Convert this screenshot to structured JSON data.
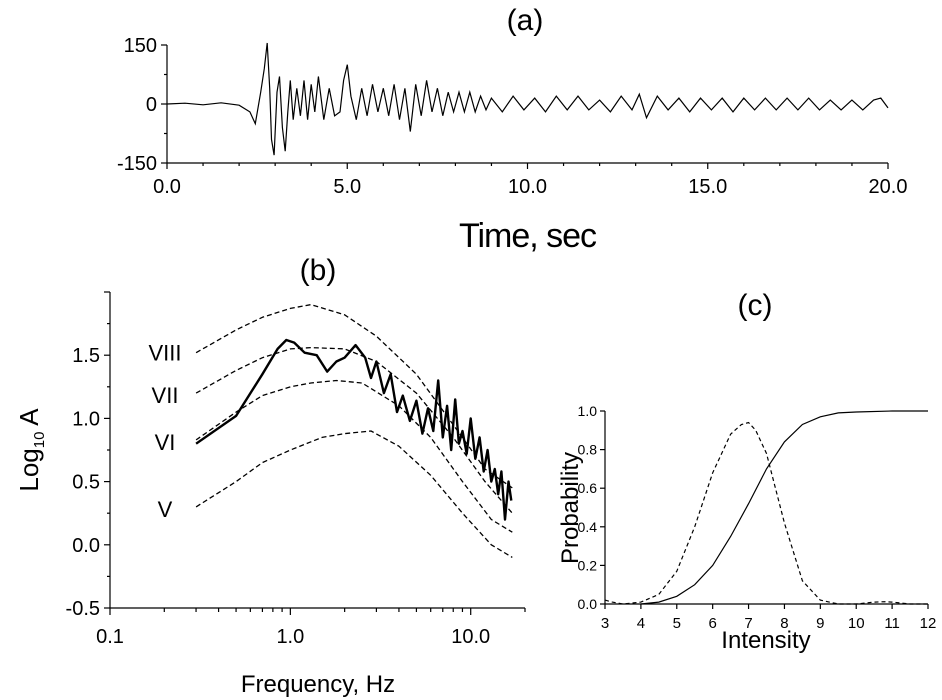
{
  "chart_data": [
    {
      "panel_label": "(a)",
      "type": "line",
      "xlabel": "Time, sec",
      "ylabel": "",
      "xlim": [
        0,
        20
      ],
      "ylim": [
        -150,
        150
      ],
      "xticks": [
        "0.0",
        "5.0",
        "10.0",
        "15.0",
        "20.0"
      ],
      "yticks": [
        "-150",
        "0",
        "150"
      ],
      "series": [
        {
          "style": "solid",
          "x": [
            0,
            0.5,
            1.0,
            1.5,
            2.0,
            2.3,
            2.45,
            2.6,
            2.7,
            2.78,
            2.85,
            2.9,
            2.97,
            3.05,
            3.12,
            3.2,
            3.28,
            3.35,
            3.42,
            3.5,
            3.6,
            3.7,
            3.8,
            3.9,
            4.0,
            4.1,
            4.2,
            4.35,
            4.5,
            4.65,
            4.8,
            4.9,
            5.0,
            5.1,
            5.25,
            5.4,
            5.55,
            5.7,
            5.85,
            6.0,
            6.15,
            6.3,
            6.45,
            6.6,
            6.75,
            6.9,
            7.05,
            7.2,
            7.35,
            7.5,
            7.65,
            7.8,
            7.95,
            8.1,
            8.25,
            8.4,
            8.55,
            8.7,
            8.85,
            9.0,
            9.3,
            9.6,
            9.9,
            10.2,
            10.5,
            10.8,
            11.1,
            11.4,
            11.7,
            12.0,
            12.3,
            12.6,
            12.9,
            13.1,
            13.3,
            13.6,
            13.9,
            14.2,
            14.5,
            14.8,
            15.1,
            15.4,
            15.7,
            16.0,
            16.3,
            16.6,
            16.9,
            17.2,
            17.5,
            17.8,
            18.1,
            18.4,
            18.7,
            19.0,
            19.3,
            19.6,
            19.8,
            20.0
          ],
          "y": [
            0,
            2,
            -2,
            3,
            -3,
            -20,
            -50,
            30,
            90,
            155,
            40,
            -90,
            -130,
            30,
            70,
            -60,
            -120,
            -20,
            60,
            -40,
            40,
            -30,
            60,
            -40,
            50,
            -20,
            70,
            -40,
            40,
            -30,
            -20,
            60,
            100,
            20,
            -40,
            40,
            -30,
            50,
            -20,
            40,
            -30,
            50,
            -40,
            40,
            -70,
            50,
            -30,
            60,
            -20,
            40,
            -30,
            30,
            -20,
            30,
            -20,
            30,
            -20,
            20,
            -15,
            15,
            -20,
            20,
            -15,
            15,
            -20,
            20,
            -15,
            20,
            -15,
            10,
            -20,
            20,
            -15,
            25,
            -35,
            20,
            -15,
            15,
            -20,
            15,
            -15,
            15,
            -20,
            15,
            -15,
            15,
            -15,
            15,
            -15,
            15,
            -15,
            10,
            -15,
            10,
            -15,
            10,
            15,
            -10
          ]
        }
      ]
    },
    {
      "panel_label": "(b)",
      "type": "line",
      "xlabel": "Frequency, Hz",
      "ylabel": "Log",
      "ylabel_sub": "10",
      "ylabel_tail": " A",
      "xscale": "log",
      "xlim": [
        0.1,
        20
      ],
      "ylim": [
        -0.5,
        2.0
      ],
      "xticks": [
        "0.1",
        "1.0",
        "10.0"
      ],
      "yticks": [
        "-0.5",
        "0.0",
        "0.5",
        "1.0",
        "1.5"
      ],
      "series": [
        {
          "name": "",
          "style": "solid-thick",
          "x": [
            0.3,
            0.5,
            0.7,
            0.85,
            0.95,
            1.05,
            1.2,
            1.4,
            1.6,
            1.8,
            2.0,
            2.3,
            2.6,
            2.8,
            3.0,
            3.3,
            3.6,
            3.9,
            4.2,
            4.6,
            5.0,
            5.4,
            5.8,
            6.2,
            6.6,
            7.0,
            7.4,
            7.8,
            8.2,
            8.6,
            9.0,
            9.5,
            10.0,
            10.6,
            11.2,
            11.8,
            12.4,
            13.0,
            13.6,
            14.2,
            14.8,
            15.5,
            16.2,
            16.8
          ],
          "y": [
            0.8,
            1.02,
            1.35,
            1.55,
            1.62,
            1.6,
            1.52,
            1.5,
            1.37,
            1.45,
            1.48,
            1.58,
            1.48,
            1.32,
            1.45,
            1.2,
            1.35,
            1.05,
            1.18,
            0.98,
            1.14,
            0.88,
            1.08,
            0.9,
            1.3,
            0.85,
            1.1,
            0.75,
            1.15,
            0.8,
            0.9,
            0.72,
            1.0,
            0.68,
            0.85,
            0.58,
            0.75,
            0.5,
            0.6,
            0.4,
            0.58,
            0.2,
            0.5,
            0.35
          ]
        },
        {
          "name": "VIII",
          "style": "dashed",
          "x": [
            0.3,
            0.5,
            0.7,
            1.0,
            1.3,
            2.0,
            3.0,
            5.0,
            8.0,
            12.0,
            17.0
          ],
          "y": [
            1.52,
            1.7,
            1.8,
            1.87,
            1.9,
            1.82,
            1.65,
            1.35,
            0.95,
            0.6,
            0.45
          ]
        },
        {
          "name": "VII",
          "style": "dashed",
          "x": [
            0.3,
            0.5,
            0.7,
            1.0,
            1.3,
            2.0,
            3.0,
            5.0,
            8.0,
            12.0,
            17.0
          ],
          "y": [
            1.2,
            1.38,
            1.48,
            1.55,
            1.56,
            1.55,
            1.45,
            1.2,
            0.85,
            0.5,
            0.25
          ]
        },
        {
          "name": "VI",
          "style": "dashed",
          "x": [
            0.3,
            0.5,
            0.7,
            1.0,
            1.3,
            1.8,
            2.5,
            4.0,
            6.0,
            9.0,
            13.0,
            17.0
          ],
          "y": [
            0.83,
            1.05,
            1.18,
            1.25,
            1.28,
            1.3,
            1.28,
            1.1,
            0.85,
            0.5,
            0.2,
            0.1
          ]
        },
        {
          "name": "V",
          "style": "dashed",
          "x": [
            0.3,
            0.5,
            0.7,
            1.0,
            1.5,
            2.0,
            2.8,
            4.0,
            6.0,
            9.0,
            13.0,
            17.0
          ],
          "y": [
            0.3,
            0.5,
            0.65,
            0.75,
            0.85,
            0.88,
            0.9,
            0.78,
            0.55,
            0.25,
            0.0,
            -0.1
          ]
        }
      ]
    },
    {
      "panel_label": "(c)",
      "type": "line",
      "xlabel": "Intensity",
      "ylabel": "Probability",
      "xlim": [
        3,
        12
      ],
      "ylim": [
        0,
        1
      ],
      "xticks": [
        "3",
        "4",
        "5",
        "6",
        "7",
        "8",
        "9",
        "10",
        "11",
        "12"
      ],
      "yticks": [
        "0.0",
        "0.2",
        "0.4",
        "0.6",
        "0.8",
        "1.0"
      ],
      "series": [
        {
          "style": "solid",
          "x": [
            4.0,
            4.5,
            5.0,
            5.5,
            6.0,
            6.5,
            7.0,
            7.5,
            8.0,
            8.5,
            9.0,
            9.5,
            10.0,
            11.0,
            12.0
          ],
          "y": [
            0.0,
            0.01,
            0.04,
            0.1,
            0.2,
            0.35,
            0.52,
            0.7,
            0.84,
            0.93,
            0.97,
            0.99,
            0.995,
            1.0,
            1.0
          ]
        },
        {
          "style": "dashed",
          "x": [
            3.0,
            3.2,
            3.5,
            4.0,
            4.5,
            5.0,
            5.5,
            6.0,
            6.5,
            6.8,
            7.0,
            7.2,
            7.5,
            8.0,
            8.5,
            9.0,
            9.5,
            10.0,
            10.5,
            10.8,
            11.0,
            11.5,
            12.0
          ],
          "y": [
            0.02,
            0.01,
            0.0,
            0.01,
            0.05,
            0.17,
            0.4,
            0.68,
            0.88,
            0.93,
            0.94,
            0.9,
            0.78,
            0.42,
            0.12,
            0.02,
            0.0,
            0.0,
            0.01,
            0.012,
            0.01,
            0.0,
            0.0
          ]
        }
      ]
    }
  ]
}
